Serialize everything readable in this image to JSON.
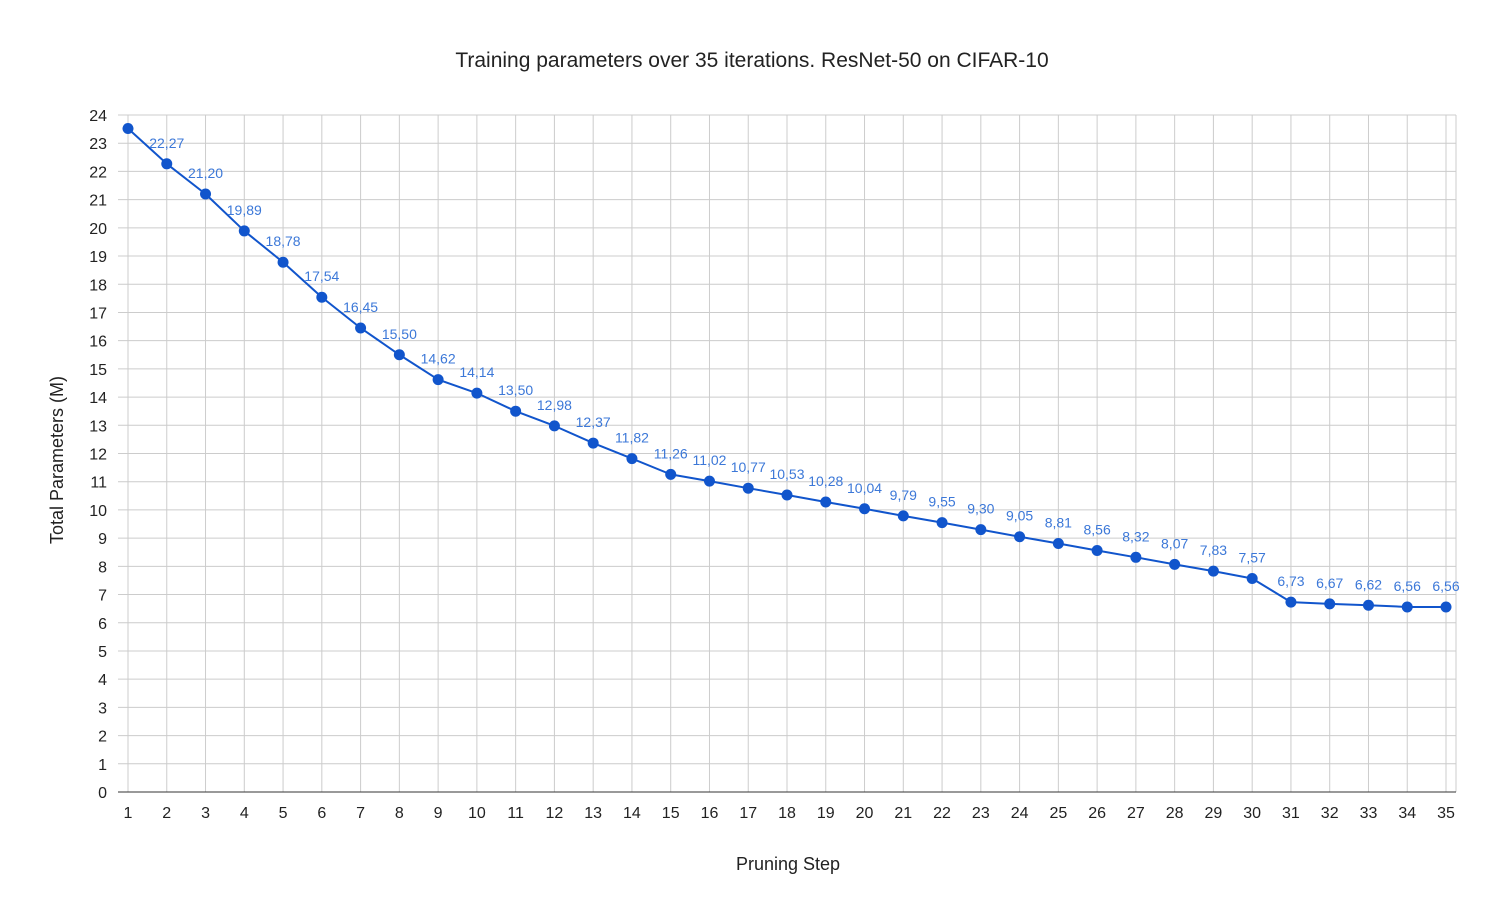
{
  "chart_data": {
    "type": "line",
    "title": "Training parameters over 35 iterations. ResNet-50 on CIFAR-10",
    "xlabel": "Pruning Step",
    "ylabel": "Total Parameters (M)",
    "categories": [
      "1",
      "2",
      "3",
      "4",
      "5",
      "6",
      "7",
      "8",
      "9",
      "10",
      "11",
      "12",
      "13",
      "14",
      "15",
      "16",
      "17",
      "18",
      "19",
      "20",
      "21",
      "22",
      "23",
      "24",
      "25",
      "26",
      "27",
      "28",
      "29",
      "30",
      "31",
      "32",
      "33",
      "34",
      "35"
    ],
    "series": [
      {
        "values": [
          23.52,
          22.27,
          21.2,
          19.89,
          18.78,
          17.54,
          16.45,
          15.5,
          14.62,
          14.14,
          13.5,
          12.98,
          12.37,
          11.82,
          11.26,
          11.02,
          10.77,
          10.53,
          10.28,
          10.04,
          9.79,
          9.55,
          9.3,
          9.05,
          8.81,
          8.56,
          8.32,
          8.07,
          7.83,
          7.57,
          6.73,
          6.67,
          6.62,
          6.56,
          6.56
        ],
        "data_labels": [
          "",
          "22,27",
          "21,20",
          "19,89",
          "18,78",
          "17,54",
          "16,45",
          "15,50",
          "14,62",
          "14,14",
          "13,50",
          "12,98",
          "12,37",
          "11,82",
          "11,26",
          "11,02",
          "10,77",
          "10,53",
          "10,28",
          "10,04",
          "9,79",
          "9,55",
          "9,30",
          "9,05",
          "8,81",
          "8,56",
          "8,32",
          "8,07",
          "7,83",
          "7,57",
          "6,73",
          "6,67",
          "6,62",
          "6,56",
          "6,56"
        ],
        "color": "#1155cc",
        "label_color": "#3c78d8"
      }
    ],
    "yticks": [
      "0",
      "1",
      "2",
      "3",
      "4",
      "5",
      "6",
      "7",
      "8",
      "9",
      "10",
      "11",
      "12",
      "13",
      "14",
      "15",
      "16",
      "17",
      "18",
      "19",
      "20",
      "21",
      "22",
      "23",
      "24"
    ],
    "ylim": [
      0,
      24
    ],
    "grid": true,
    "legend": "none"
  }
}
